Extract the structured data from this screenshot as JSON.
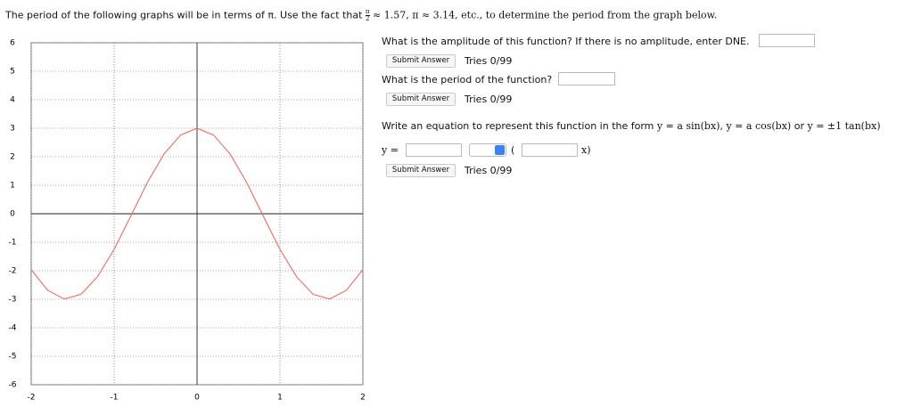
{
  "instructions": {
    "before": "The period of the following graphs will be in terms of π. Use the fact that",
    "fraction": {
      "numerator": "π",
      "denominator": "2"
    },
    "after": "≈ 1.57, π ≈ 3.14, etc., to determine the period from the graph below."
  },
  "chart_data": {
    "type": "line",
    "x": [
      -2,
      -1.8,
      -1.6,
      -1.4,
      -1.2,
      -1,
      -0.8,
      -0.6,
      -0.4,
      -0.2,
      0,
      0.2,
      0.4,
      0.6,
      0.8,
      1,
      1.2,
      1.4,
      1.6,
      1.8,
      2
    ],
    "series": [
      {
        "color": "#ee6b5e",
        "values": [
          -1.96,
          -2.69,
          -2.99,
          -2.83,
          -2.21,
          -1.25,
          -0.09,
          1.09,
          2.09,
          2.76,
          3,
          2.76,
          2.09,
          1.09,
          -0.09,
          -1.25,
          -2.21,
          -2.83,
          -2.99,
          -2.69,
          -1.96
        ]
      }
    ],
    "xlim": [
      -2,
      2
    ],
    "ylim": [
      -6,
      6
    ],
    "xticks": [
      -2,
      -1,
      0,
      1,
      2
    ],
    "yticks": [
      -6,
      -5,
      -4,
      -3,
      -2,
      -1,
      0,
      1,
      2,
      3,
      4,
      5,
      6
    ],
    "grid": true
  },
  "questions": [
    {
      "prompt": "What is the amplitude of this function? If there is no amplitude, enter DNE.",
      "submit": "Submit Answer",
      "tries": "Tries 0/99"
    },
    {
      "prompt": "What is the period of the function?",
      "submit": "Submit Answer",
      "tries": "Tries 0/99"
    },
    {
      "prompt": "Write an equation to represent this function in the form",
      "forms": [
        "y = a sin(bx),",
        "y = a cos(bx)",
        "y = ±1 tan(bx)"
      ],
      "conjunction": "or",
      "submit": "Submit Answer",
      "tries": "Tries 0/99"
    }
  ],
  "equation": {
    "lhs": "y =",
    "open": "(",
    "close": "x)"
  }
}
